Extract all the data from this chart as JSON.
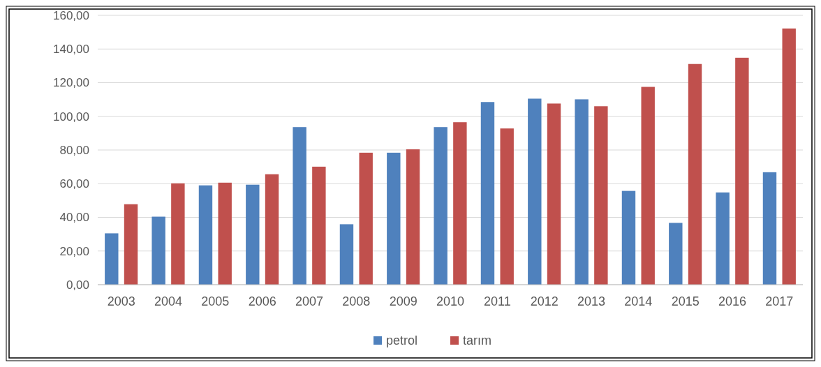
{
  "chart_data": {
    "type": "bar",
    "categories": [
      "2003",
      "2004",
      "2005",
      "2006",
      "2007",
      "2008",
      "2009",
      "2010",
      "2011",
      "2012",
      "2013",
      "2014",
      "2015",
      "2016",
      "2017"
    ],
    "series": [
      {
        "name": "petrol",
        "color": "#4f81bd",
        "values": [
          30.5,
          40.4,
          59,
          59.4,
          93.6,
          35.9,
          78.4,
          93.6,
          108.5,
          110.5,
          110.1,
          55.7,
          36.7,
          54.8,
          66.8
        ]
      },
      {
        "name": "tarım",
        "color": "#c0504d",
        "values": [
          47.8,
          60.2,
          60.6,
          65.6,
          70.1,
          78.4,
          80.4,
          96.5,
          92.8,
          107.6,
          106,
          117.5,
          131.1,
          134.8,
          152.2
        ]
      }
    ],
    "ylim": [
      0,
      160
    ],
    "yticks": [
      {
        "value": 0,
        "label": "0,00"
      },
      {
        "value": 20,
        "label": "20,00"
      },
      {
        "value": 40,
        "label": "40,00"
      },
      {
        "value": 60,
        "label": "60,00"
      },
      {
        "value": 80,
        "label": "80,00"
      },
      {
        "value": 100,
        "label": "100,00"
      },
      {
        "value": 120,
        "label": "120,00"
      },
      {
        "value": 140,
        "label": "140,00"
      },
      {
        "value": 160,
        "label": "160,00"
      }
    ],
    "grid": "y",
    "legend": "bottom"
  }
}
